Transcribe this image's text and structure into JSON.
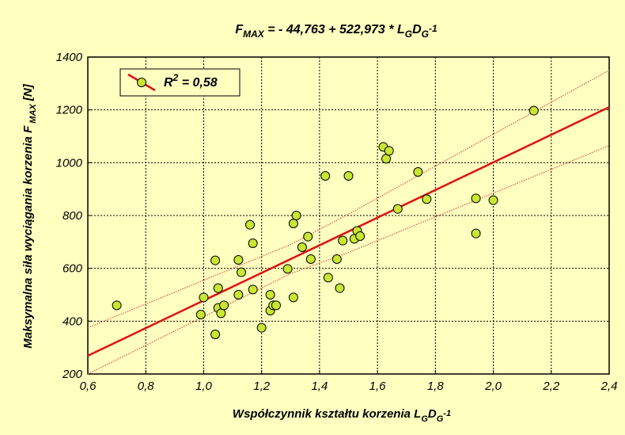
{
  "chart_data": {
    "type": "scatter",
    "title_parts": [
      {
        "t": "F",
        "s": "n"
      },
      {
        "t": "MAX",
        "s": "sub"
      },
      {
        "t": " = - 44,763 + 522,973 * L",
        "s": "n"
      },
      {
        "t": "G",
        "s": "sub"
      },
      {
        "t": "D",
        "s": "n"
      },
      {
        "t": "G",
        "s": "sub"
      },
      {
        "t": "-1",
        "s": "sup"
      }
    ],
    "xlabel_parts": [
      {
        "t": "Współczynnik kształtu korzenia L",
        "s": "n"
      },
      {
        "t": "G",
        "s": "sub"
      },
      {
        "t": "D",
        "s": "n"
      },
      {
        "t": "G",
        "s": "sub"
      },
      {
        "t": "-1",
        "s": "sup"
      }
    ],
    "ylabel_parts": [
      {
        "t": "Maksymalna siła wyciągania korzenia F",
        "s": "n"
      },
      {
        "t": " MAX",
        "s": "sub"
      },
      {
        "t": " [N]",
        "s": "n"
      }
    ],
    "legend_parts": [
      {
        "t": "R",
        "s": "n"
      },
      {
        "t": "2",
        "s": "sup"
      },
      {
        "t": " = 0,58",
        "s": "n"
      }
    ],
    "legend_position": "top-left",
    "grid": true,
    "xlim": [
      0.6,
      2.4
    ],
    "ylim": [
      200,
      1400
    ],
    "x_ticks": [
      "0,6",
      "0,8",
      "1,0",
      "1,2",
      "1,4",
      "1,6",
      "1,8",
      "2,0",
      "2,2",
      "2,4"
    ],
    "y_ticks": [
      "200",
      "400",
      "600",
      "800",
      "1000",
      "1200",
      "1400"
    ],
    "regression": {
      "intercept": -44.763,
      "slope": 522.973
    },
    "confidence_band": {
      "upper": [
        [
          0.6,
          375
        ],
        [
          1.3,
          690
        ],
        [
          1.5,
          805
        ],
        [
          2.4,
          1350
        ]
      ],
      "lower": [
        [
          0.6,
          165
        ],
        [
          1.3,
          580
        ],
        [
          1.5,
          660
        ],
        [
          2.4,
          1065
        ]
      ]
    },
    "colors": {
      "background": "#ffffc0",
      "marker": "#c8e632",
      "line": "#e01010",
      "band": "#e05050",
      "grid": "#000000"
    },
    "points": [
      [
        0.7,
        460
      ],
      [
        0.99,
        425
      ],
      [
        1.0,
        490
      ],
      [
        1.04,
        630
      ],
      [
        1.04,
        350
      ],
      [
        1.05,
        525
      ],
      [
        1.05,
        450
      ],
      [
        1.06,
        430
      ],
      [
        1.07,
        460
      ],
      [
        1.12,
        500
      ],
      [
        1.12,
        632
      ],
      [
        1.13,
        585
      ],
      [
        1.16,
        765
      ],
      [
        1.17,
        520
      ],
      [
        1.17,
        695
      ],
      [
        1.2,
        375
      ],
      [
        1.23,
        500
      ],
      [
        1.23,
        440
      ],
      [
        1.24,
        460
      ],
      [
        1.25,
        460
      ],
      [
        1.29,
        598
      ],
      [
        1.31,
        770
      ],
      [
        1.31,
        490
      ],
      [
        1.32,
        800
      ],
      [
        1.34,
        680
      ],
      [
        1.36,
        720
      ],
      [
        1.37,
        635
      ],
      [
        1.42,
        950
      ],
      [
        1.43,
        565
      ],
      [
        1.46,
        635
      ],
      [
        1.47,
        525
      ],
      [
        1.48,
        705
      ],
      [
        1.5,
        950
      ],
      [
        1.52,
        712
      ],
      [
        1.53,
        742
      ],
      [
        1.54,
        722
      ],
      [
        1.62,
        1060
      ],
      [
        1.63,
        1015
      ],
      [
        1.64,
        1045
      ],
      [
        1.67,
        825
      ],
      [
        1.74,
        965
      ],
      [
        1.77,
        862
      ],
      [
        1.94,
        865
      ],
      [
        1.94,
        732
      ],
      [
        2.0,
        858
      ],
      [
        2.14,
        1197
      ]
    ]
  }
}
